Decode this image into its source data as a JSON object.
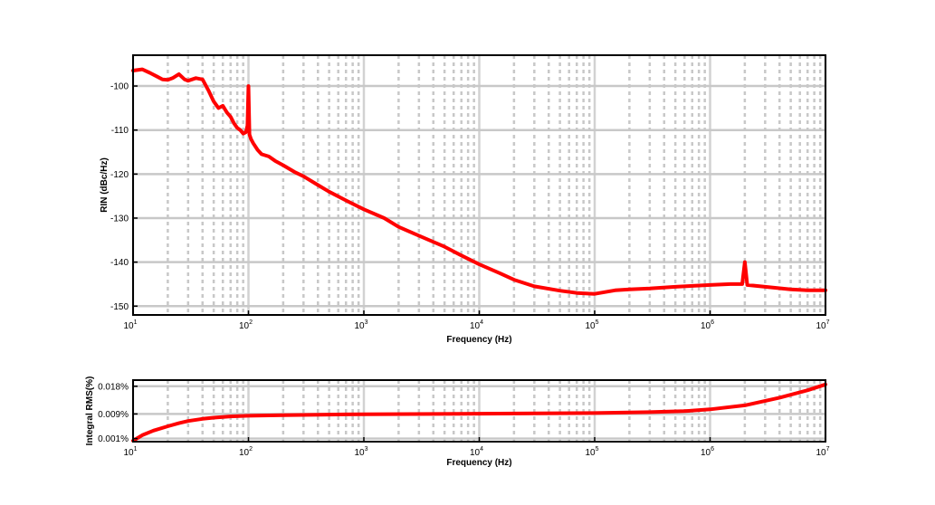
{
  "chart_data": [
    {
      "type": "line",
      "title": "",
      "xlabel": "Frequency (Hz)",
      "ylabel": "RIN (dBc/Hz)",
      "xscale": "log",
      "xlim": [
        10,
        10000000
      ],
      "ylim": [
        -152,
        -93
      ],
      "grid": true,
      "color": "#ff0000",
      "xticks": [
        {
          "value": 10,
          "base": "10",
          "exp": "1"
        },
        {
          "value": 100,
          "base": "10",
          "exp": "2"
        },
        {
          "value": 1000,
          "base": "10",
          "exp": "3"
        },
        {
          "value": 10000,
          "base": "10",
          "exp": "4"
        },
        {
          "value": 100000,
          "base": "10",
          "exp": "5"
        },
        {
          "value": 1000000,
          "base": "10",
          "exp": "6"
        },
        {
          "value": 10000000,
          "base": "10",
          "exp": "7"
        }
      ],
      "yticks": [
        {
          "value": -100,
          "label": "-100"
        },
        {
          "value": -110,
          "label": "-110"
        },
        {
          "value": -120,
          "label": "-120"
        },
        {
          "value": -130,
          "label": "-130"
        },
        {
          "value": -140,
          "label": "-140"
        },
        {
          "value": -150,
          "label": "-150"
        }
      ],
      "series": [
        {
          "x": [
            10,
            12,
            14,
            16,
            18,
            20,
            22,
            25,
            28,
            30,
            35,
            40,
            45,
            50,
            55,
            60,
            65,
            70,
            75,
            80,
            85,
            90,
            95,
            98,
            100,
            102,
            105,
            110,
            120,
            130,
            150,
            170,
            200,
            250,
            300,
            400,
            500,
            700,
            1000,
            1500,
            2000,
            3000,
            5000,
            7000,
            10000,
            15000,
            20000,
            30000,
            50000,
            70000,
            100000,
            150000,
            200000,
            300000,
            500000,
            700000,
            1000000,
            1500000,
            1900000,
            2000000,
            2100000,
            3000000,
            5000000,
            7000000,
            10000000
          ],
          "y": [
            -96.5,
            -96.2,
            -97,
            -97.8,
            -98.5,
            -98.6,
            -98.2,
            -97.3,
            -98.5,
            -98.8,
            -98.2,
            -98.5,
            -101,
            -103.5,
            -105,
            -104.5,
            -106,
            -107,
            -108.5,
            -109.5,
            -110,
            -110.8,
            -110.5,
            -109,
            -100,
            -111,
            -112,
            -113,
            -114.5,
            -115.5,
            -116,
            -117,
            -118,
            -119.5,
            -120.5,
            -122.5,
            -124,
            -126,
            -128,
            -130,
            -132,
            -134,
            -136.5,
            -138.5,
            -140.5,
            -142.5,
            -144,
            -145.5,
            -146.5,
            -147,
            -147.2,
            -146.4,
            -146.2,
            -146,
            -145.6,
            -145.4,
            -145.2,
            -145,
            -145,
            -140,
            -145.2,
            -145.6,
            -146.2,
            -146.4,
            -146.4
          ]
        }
      ]
    },
    {
      "type": "line",
      "title": "",
      "xlabel": "Frequency (Hz)",
      "ylabel": "Integral RMS(%)",
      "xscale": "log",
      "xlim": [
        10,
        10000000
      ],
      "ylim": [
        0,
        0.02
      ],
      "grid": true,
      "color": "#ff0000",
      "xticks": [
        {
          "value": 10,
          "base": "10",
          "exp": "1"
        },
        {
          "value": 100,
          "base": "10",
          "exp": "2"
        },
        {
          "value": 1000,
          "base": "10",
          "exp": "3"
        },
        {
          "value": 10000,
          "base": "10",
          "exp": "4"
        },
        {
          "value": 100000,
          "base": "10",
          "exp": "5"
        },
        {
          "value": 1000000,
          "base": "10",
          "exp": "6"
        },
        {
          "value": 10000000,
          "base": "10",
          "exp": "7"
        }
      ],
      "yticks": [
        {
          "value": 0.001,
          "label": "0.001%"
        },
        {
          "value": 0.009,
          "label": "0.009%"
        },
        {
          "value": 0.018,
          "label": "0.018%"
        }
      ],
      "series": [
        {
          "x": [
            10,
            12,
            15,
            20,
            25,
            30,
            40,
            50,
            70,
            100,
            200,
            500,
            1000,
            10000,
            100000,
            300000,
            600000,
            1000000,
            2000000,
            4000000,
            7000000,
            10000000
          ],
          "y": [
            0.0003,
            0.0021,
            0.0036,
            0.005,
            0.006,
            0.0067,
            0.0074,
            0.0078,
            0.0082,
            0.0084,
            0.0086,
            0.0088,
            0.0089,
            0.0091,
            0.0093,
            0.0096,
            0.0099,
            0.0105,
            0.0118,
            0.0143,
            0.0167,
            0.0186
          ]
        }
      ]
    }
  ]
}
